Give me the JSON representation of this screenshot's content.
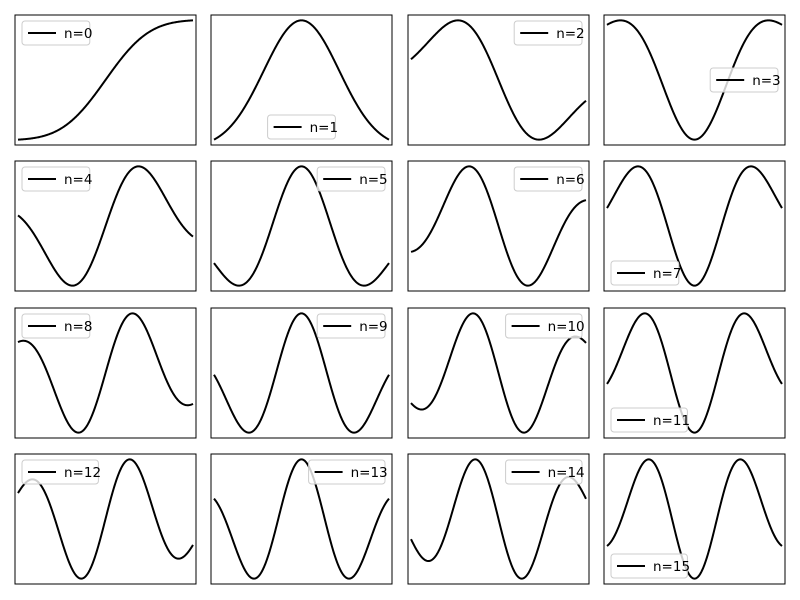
{
  "figure": {
    "curve_color": "#000000",
    "legend_edge_color": "#cccccc",
    "background": "#ffffff"
  },
  "chart_data": [
    {
      "type": "line",
      "legend": "n=0",
      "legend_loc": "upper left",
      "function": "integral of Gaussian (erf-like step), n=0 derivative-of-Gaussian family",
      "x_range": [
        -5,
        5
      ],
      "axes_ticks_visible": false,
      "grid": false
    },
    {
      "type": "line",
      "legend": "n=1",
      "legend_loc": "lower center",
      "function": "Gaussian",
      "x_range": [
        -5,
        5
      ],
      "axes_ticks_visible": false,
      "grid": false
    },
    {
      "type": "line",
      "legend": "n=2",
      "legend_loc": "upper right",
      "function": "1st derivative of Gaussian",
      "x_range": [
        -5,
        5
      ],
      "axes_ticks_visible": false,
      "grid": false
    },
    {
      "type": "line",
      "legend": "n=3",
      "legend_loc": "center right",
      "function": "2nd derivative of Gaussian",
      "x_range": [
        -5,
        5
      ],
      "axes_ticks_visible": false,
      "grid": false
    },
    {
      "type": "line",
      "legend": "n=4",
      "legend_loc": "upper left",
      "function": "3rd derivative of Gaussian",
      "x_range": [
        -5,
        5
      ],
      "axes_ticks_visible": false,
      "grid": false
    },
    {
      "type": "line",
      "legend": "n=5",
      "legend_loc": "upper right",
      "function": "4th derivative of Gaussian",
      "x_range": [
        -5,
        5
      ],
      "axes_ticks_visible": false,
      "grid": false
    },
    {
      "type": "line",
      "legend": "n=6",
      "legend_loc": "upper right",
      "function": "5th derivative of Gaussian",
      "x_range": [
        -5,
        5
      ],
      "axes_ticks_visible": false,
      "grid": false
    },
    {
      "type": "line",
      "legend": "n=7",
      "legend_loc": "lower left",
      "function": "6th derivative of Gaussian",
      "x_range": [
        -5,
        5
      ],
      "axes_ticks_visible": false,
      "grid": false
    },
    {
      "type": "line",
      "legend": "n=8",
      "legend_loc": "upper left",
      "function": "7th derivative of Gaussian",
      "x_range": [
        -5,
        5
      ],
      "axes_ticks_visible": false,
      "grid": false
    },
    {
      "type": "line",
      "legend": "n=9",
      "legend_loc": "upper right",
      "function": "8th derivative of Gaussian",
      "x_range": [
        -5,
        5
      ],
      "axes_ticks_visible": false,
      "grid": false
    },
    {
      "type": "line",
      "legend": "n=10",
      "legend_loc": "upper right",
      "function": "9th derivative of Gaussian",
      "x_range": [
        -5,
        5
      ],
      "axes_ticks_visible": false,
      "grid": false
    },
    {
      "type": "line",
      "legend": "n=11",
      "legend_loc": "lower left",
      "function": "10th derivative of Gaussian",
      "x_range": [
        -5,
        5
      ],
      "axes_ticks_visible": false,
      "grid": false
    },
    {
      "type": "line",
      "legend": "n=12",
      "legend_loc": "upper left",
      "function": "11th derivative of Gaussian",
      "x_range": [
        -5,
        5
      ],
      "axes_ticks_visible": false,
      "grid": false
    },
    {
      "type": "line",
      "legend": "n=13",
      "legend_loc": "upper right",
      "function": "12th derivative of Gaussian",
      "x_range": [
        -5,
        5
      ],
      "axes_ticks_visible": false,
      "grid": false
    },
    {
      "type": "line",
      "legend": "n=14",
      "legend_loc": "upper right",
      "function": "13th derivative of Gaussian",
      "x_range": [
        -5,
        5
      ],
      "axes_ticks_visible": false,
      "grid": false
    },
    {
      "type": "line",
      "legend": "n=15",
      "legend_loc": "lower left",
      "function": "14th derivative of Gaussian",
      "x_range": [
        -5,
        5
      ],
      "axes_ticks_visible": false,
      "grid": false
    }
  ]
}
